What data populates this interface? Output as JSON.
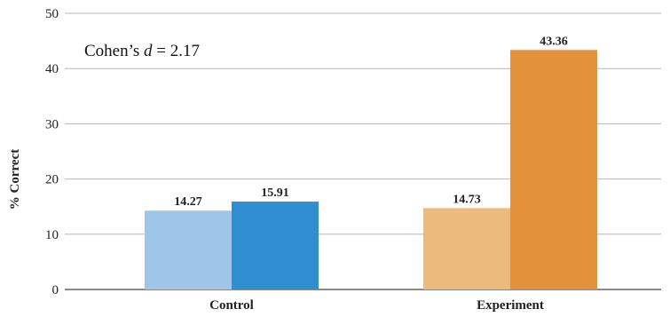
{
  "chart_data": {
    "type": "bar",
    "title": "",
    "xlabel": "",
    "ylabel": "% Correct",
    "ylim": [
      0,
      50
    ],
    "yticks": [
      0,
      10,
      20,
      30,
      40,
      50
    ],
    "categories": [
      "Control",
      "Experiment"
    ],
    "grid": true,
    "legend": "none",
    "annotation": {
      "prefix": "Cohen’s ",
      "variable": "d",
      "suffix": " = 2.17"
    },
    "bars": [
      {
        "category": "Control",
        "value": 14.27,
        "label": "14.27",
        "color": "#9fc5e8"
      },
      {
        "category": "Control",
        "value": 15.91,
        "label": "15.91",
        "color": "#2f8fd0"
      },
      {
        "category": "Experiment",
        "value": 14.73,
        "label": "14.73",
        "color": "#ecba7c"
      },
      {
        "category": "Experiment",
        "value": 43.36,
        "label": "43.36",
        "color": "#e3913a"
      }
    ]
  }
}
